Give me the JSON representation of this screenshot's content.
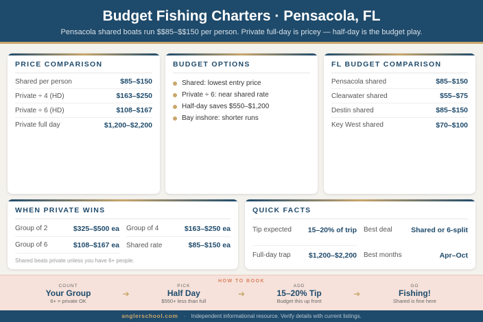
{
  "header": {
    "title": "Budget Fishing Charters · Pensacola, FL",
    "subtitle": "Pensacola shared boats run $$85–$$150 per person. Private full-day is pricey — half-day is the budget play."
  },
  "price": {
    "title": "PRICE COMPARISON",
    "rows": [
      {
        "label": "Shared per person",
        "value": "$85–$150"
      },
      {
        "label": "Private ÷ 4 (HD)",
        "value": "$163–$250"
      },
      {
        "label": "Private ÷ 6 (HD)",
        "value": "$108–$167"
      },
      {
        "label": "Private full day",
        "value": "$1,200–$2,200"
      }
    ]
  },
  "budget": {
    "title": "BUDGET OPTIONS",
    "items": [
      "Shared: lowest entry price",
      "Private ÷ 6: near shared rate",
      "Half-day saves $550–$1,200",
      "Bay inshore: shorter runs"
    ]
  },
  "fl": {
    "title": "FL BUDGET COMPARISON",
    "rows": [
      {
        "label": "Pensacola shared",
        "value": "$85–$150"
      },
      {
        "label": "Clearwater shared",
        "value": "$55–$75"
      },
      {
        "label": "Destin shared",
        "value": "$85–$150"
      },
      {
        "label": "Key West shared",
        "value": "$70–$100"
      }
    ]
  },
  "private": {
    "title": "WHEN PRIVATE WINS",
    "rows": [
      {
        "label": "Group of 2",
        "value": "$325–$500 ea"
      },
      {
        "label": "Group of 4",
        "value": "$163–$250 ea"
      },
      {
        "label": "Group of 6",
        "value": "$108–$167 ea"
      },
      {
        "label": "Shared rate",
        "value": "$85–$150 ea"
      }
    ],
    "note": "Shared beats private unless you have 6+ people."
  },
  "facts": {
    "title": "QUICK FACTS",
    "rows": [
      {
        "label": "Tip expected",
        "value": "15–20% of trip"
      },
      {
        "label": "Best deal",
        "value": "Shared or 6-split"
      },
      {
        "label": "Full-day trap",
        "value": "$1,200–$2,200"
      },
      {
        "label": "Best months",
        "value": "Apr–Oct"
      }
    ]
  },
  "how": {
    "title": "HOW TO BOOK",
    "steps": [
      {
        "step": "COUNT",
        "big": "Your Group",
        "desc": "6+ = private OK"
      },
      {
        "step": "PICK",
        "big": "Half Day",
        "desc": "$550+ less than full"
      },
      {
        "step": "ADD",
        "big": "15–20% Tip",
        "desc": "Budget this up front"
      },
      {
        "step": "GO",
        "big": "Fishing!",
        "desc": "Shared is fine here"
      }
    ],
    "arrow": "➔"
  },
  "footer": {
    "site": "anglerschool.com",
    "sep": "·",
    "text": "Independent informational resource. Verify details with current listings."
  },
  "colors": {
    "navy": "#1e4a6b",
    "gold": "#c9a66b",
    "accent": "#d9805b"
  }
}
